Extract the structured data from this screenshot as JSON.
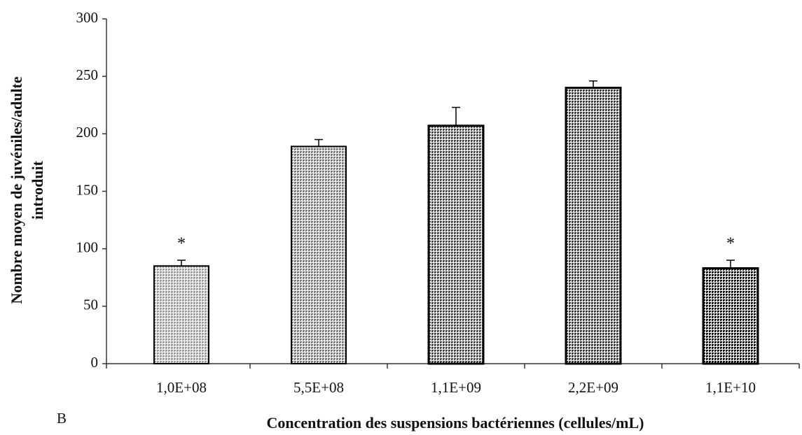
{
  "chart_data": {
    "type": "bar",
    "panel_label": "B",
    "xlabel": "Concentration des suspensions bactériennes (cellules/mL)",
    "ylabel": [
      "Nombre moyen de juvéniles/adulte",
      "introduit"
    ],
    "categories": [
      "1,0E+08",
      "5,5E+08",
      "1,1E+09",
      "2,2E+09",
      "1,1E+10"
    ],
    "values": [
      85,
      189,
      207,
      240,
      83
    ],
    "errors": [
      5,
      6,
      16,
      6,
      7
    ],
    "annotations": [
      "*",
      null,
      null,
      null,
      "*"
    ],
    "colors": [
      "#9a9a9a",
      "#7a7a7a",
      "#4a4a4a",
      "#3a3a3a",
      "#111111"
    ],
    "ylim": [
      0,
      300
    ],
    "yticks": [
      0,
      50,
      100,
      150,
      200,
      250,
      300
    ],
    "grid": false
  }
}
